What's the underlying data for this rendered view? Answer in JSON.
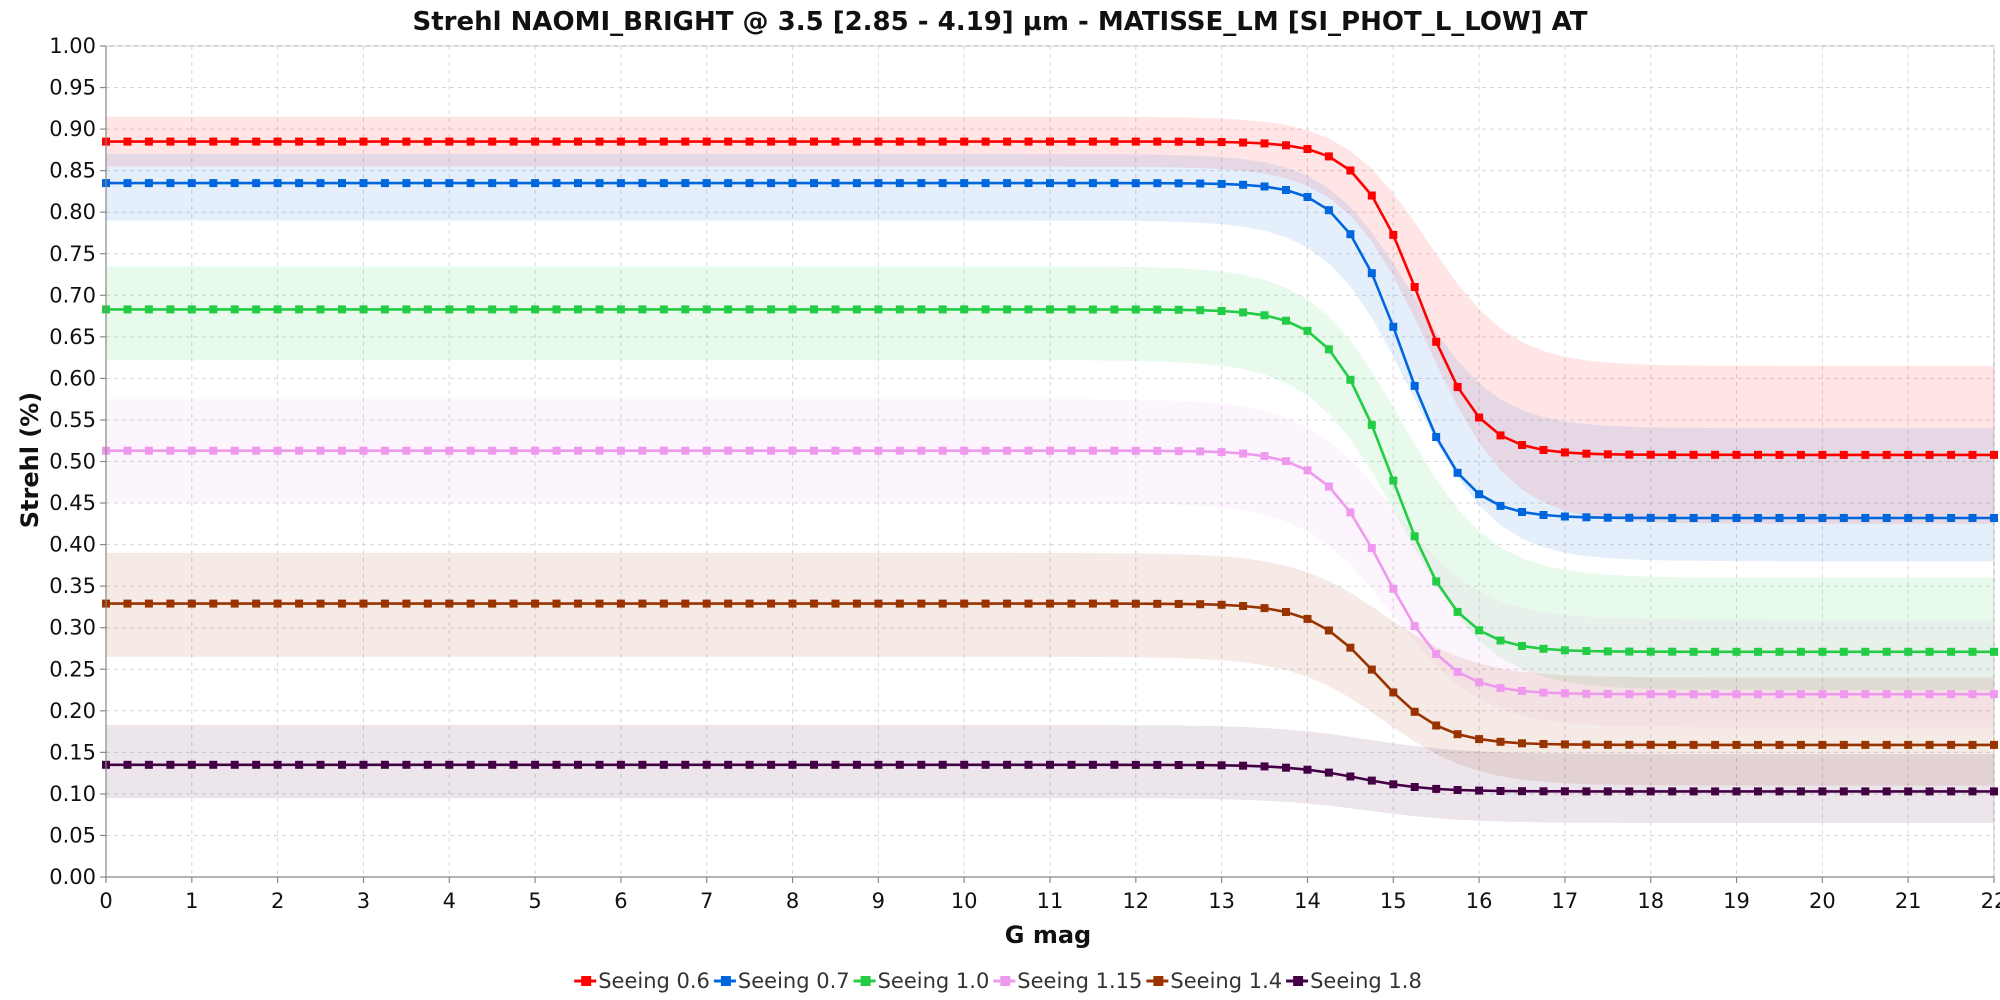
{
  "chart_data": {
    "type": "line",
    "title": "Strehl NAOMI_BRIGHT @ 3.5 [2.85 - 4.19] µm - MATISSE_LM [SI_PHOT_L_LOW] AT",
    "xlabel": "G mag",
    "ylabel": "Strehl (%)",
    "xlim": [
      0,
      22
    ],
    "ylim": [
      0,
      1.0
    ],
    "x_ticks": [
      "0",
      "1",
      "2",
      "3",
      "4",
      "5",
      "6",
      "7",
      "8",
      "9",
      "10",
      "11",
      "12",
      "13",
      "14",
      "15",
      "16",
      "17",
      "18",
      "19",
      "20",
      "21",
      "22"
    ],
    "y_ticks": [
      "0.00",
      "0.05",
      "0.10",
      "0.15",
      "0.20",
      "0.25",
      "0.30",
      "0.35",
      "0.40",
      "0.45",
      "0.50",
      "0.55",
      "0.60",
      "0.65",
      "0.70",
      "0.75",
      "0.80",
      "0.85",
      "0.90",
      "0.95",
      "1.00"
    ],
    "grid": true,
    "legend_position": "bottom",
    "x_step": 0.25,
    "series": [
      {
        "name": "Seeing 0.6",
        "color": "#ff0000",
        "bright": 0.885,
        "faint": 0.508,
        "mid": 15.3,
        "width": 0.35,
        "band_bright": [
          0.855,
          0.915
        ],
        "band_faint": [
          0.425,
          0.615
        ]
      },
      {
        "name": "Seeing 0.7",
        "color": "#0066dd",
        "bright": 0.835,
        "faint": 0.432,
        "mid": 15.1,
        "width": 0.35,
        "band_bright": [
          0.79,
          0.87
        ],
        "band_faint": [
          0.38,
          0.54
        ]
      },
      {
        "name": "Seeing 1.0",
        "color": "#22cc44",
        "bright": 0.683,
        "faint": 0.271,
        "mid": 15.0,
        "width": 0.37,
        "band_bright": [
          0.622,
          0.735
        ],
        "band_faint": [
          0.225,
          0.36
        ]
      },
      {
        "name": "Seeing 1.15",
        "color": "#ee99ee",
        "bright": 0.513,
        "faint": 0.22,
        "mid": 14.9,
        "width": 0.37,
        "band_bright": [
          0.45,
          0.575
        ],
        "band_faint": [
          0.18,
          0.31
        ]
      },
      {
        "name": "Seeing 1.4",
        "color": "#993300",
        "bright": 0.329,
        "faint": 0.159,
        "mid": 14.8,
        "width": 0.38,
        "band_bright": [
          0.265,
          0.39
        ],
        "band_faint": [
          0.11,
          0.24
        ]
      },
      {
        "name": "Seeing 1.8",
        "color": "#440044",
        "bright": 0.135,
        "faint": 0.103,
        "mid": 14.6,
        "width": 0.4,
        "band_bright": [
          0.095,
          0.183
        ],
        "band_faint": [
          0.065,
          0.148
        ]
      }
    ]
  }
}
